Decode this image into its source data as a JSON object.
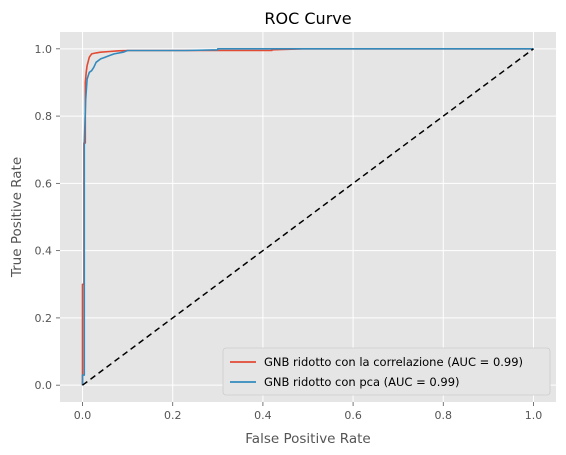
{
  "chart_data": {
    "type": "line",
    "title": "ROC Curve",
    "xlabel": "False Positive Rate",
    "ylabel": "True Positive Rate",
    "xlim": [
      -0.05,
      1.05
    ],
    "ylim": [
      -0.05,
      1.05
    ],
    "xticks": [
      "0.0",
      "0.2",
      "0.4",
      "0.6",
      "0.8",
      "1.0"
    ],
    "yticks": [
      "0.0",
      "0.2",
      "0.4",
      "0.6",
      "0.8",
      "1.0"
    ],
    "grid": true,
    "legend_position": "lower-right",
    "series": [
      {
        "name": "GNB ridotto con la correlazione (AUC = 0.99)",
        "color": "#E24A33",
        "x": [
          0.0,
          0.0,
          0.003,
          0.003,
          0.006,
          0.006,
          0.008,
          0.01,
          0.012,
          0.015,
          0.02,
          0.03,
          0.04,
          0.06,
          0.08,
          0.1,
          0.15,
          0.3,
          0.42,
          0.42,
          0.49,
          1.0
        ],
        "y": [
          0.0,
          0.3,
          0.3,
          0.72,
          0.72,
          0.9,
          0.93,
          0.95,
          0.96,
          0.975,
          0.985,
          0.988,
          0.99,
          0.992,
          0.994,
          0.995,
          0.995,
          0.995,
          0.995,
          0.997,
          1.0,
          1.0
        ]
      },
      {
        "name": "GNB ridotto con pca (AUC = 0.99)",
        "color": "#348ABD",
        "x": [
          0.0,
          0.0,
          0.004,
          0.004,
          0.007,
          0.01,
          0.015,
          0.02,
          0.025,
          0.03,
          0.04,
          0.05,
          0.06,
          0.07,
          0.09,
          0.1,
          0.23,
          0.3,
          0.3,
          1.0
        ],
        "y": [
          0.0,
          0.03,
          0.03,
          0.72,
          0.85,
          0.91,
          0.93,
          0.935,
          0.945,
          0.96,
          0.97,
          0.975,
          0.98,
          0.985,
          0.99,
          0.995,
          0.995,
          0.997,
          1.0,
          1.0
        ]
      },
      {
        "name": "",
        "color": "#000000",
        "dashed": true,
        "x": [
          0.0,
          1.0
        ],
        "y": [
          0.0,
          1.0
        ]
      }
    ]
  }
}
